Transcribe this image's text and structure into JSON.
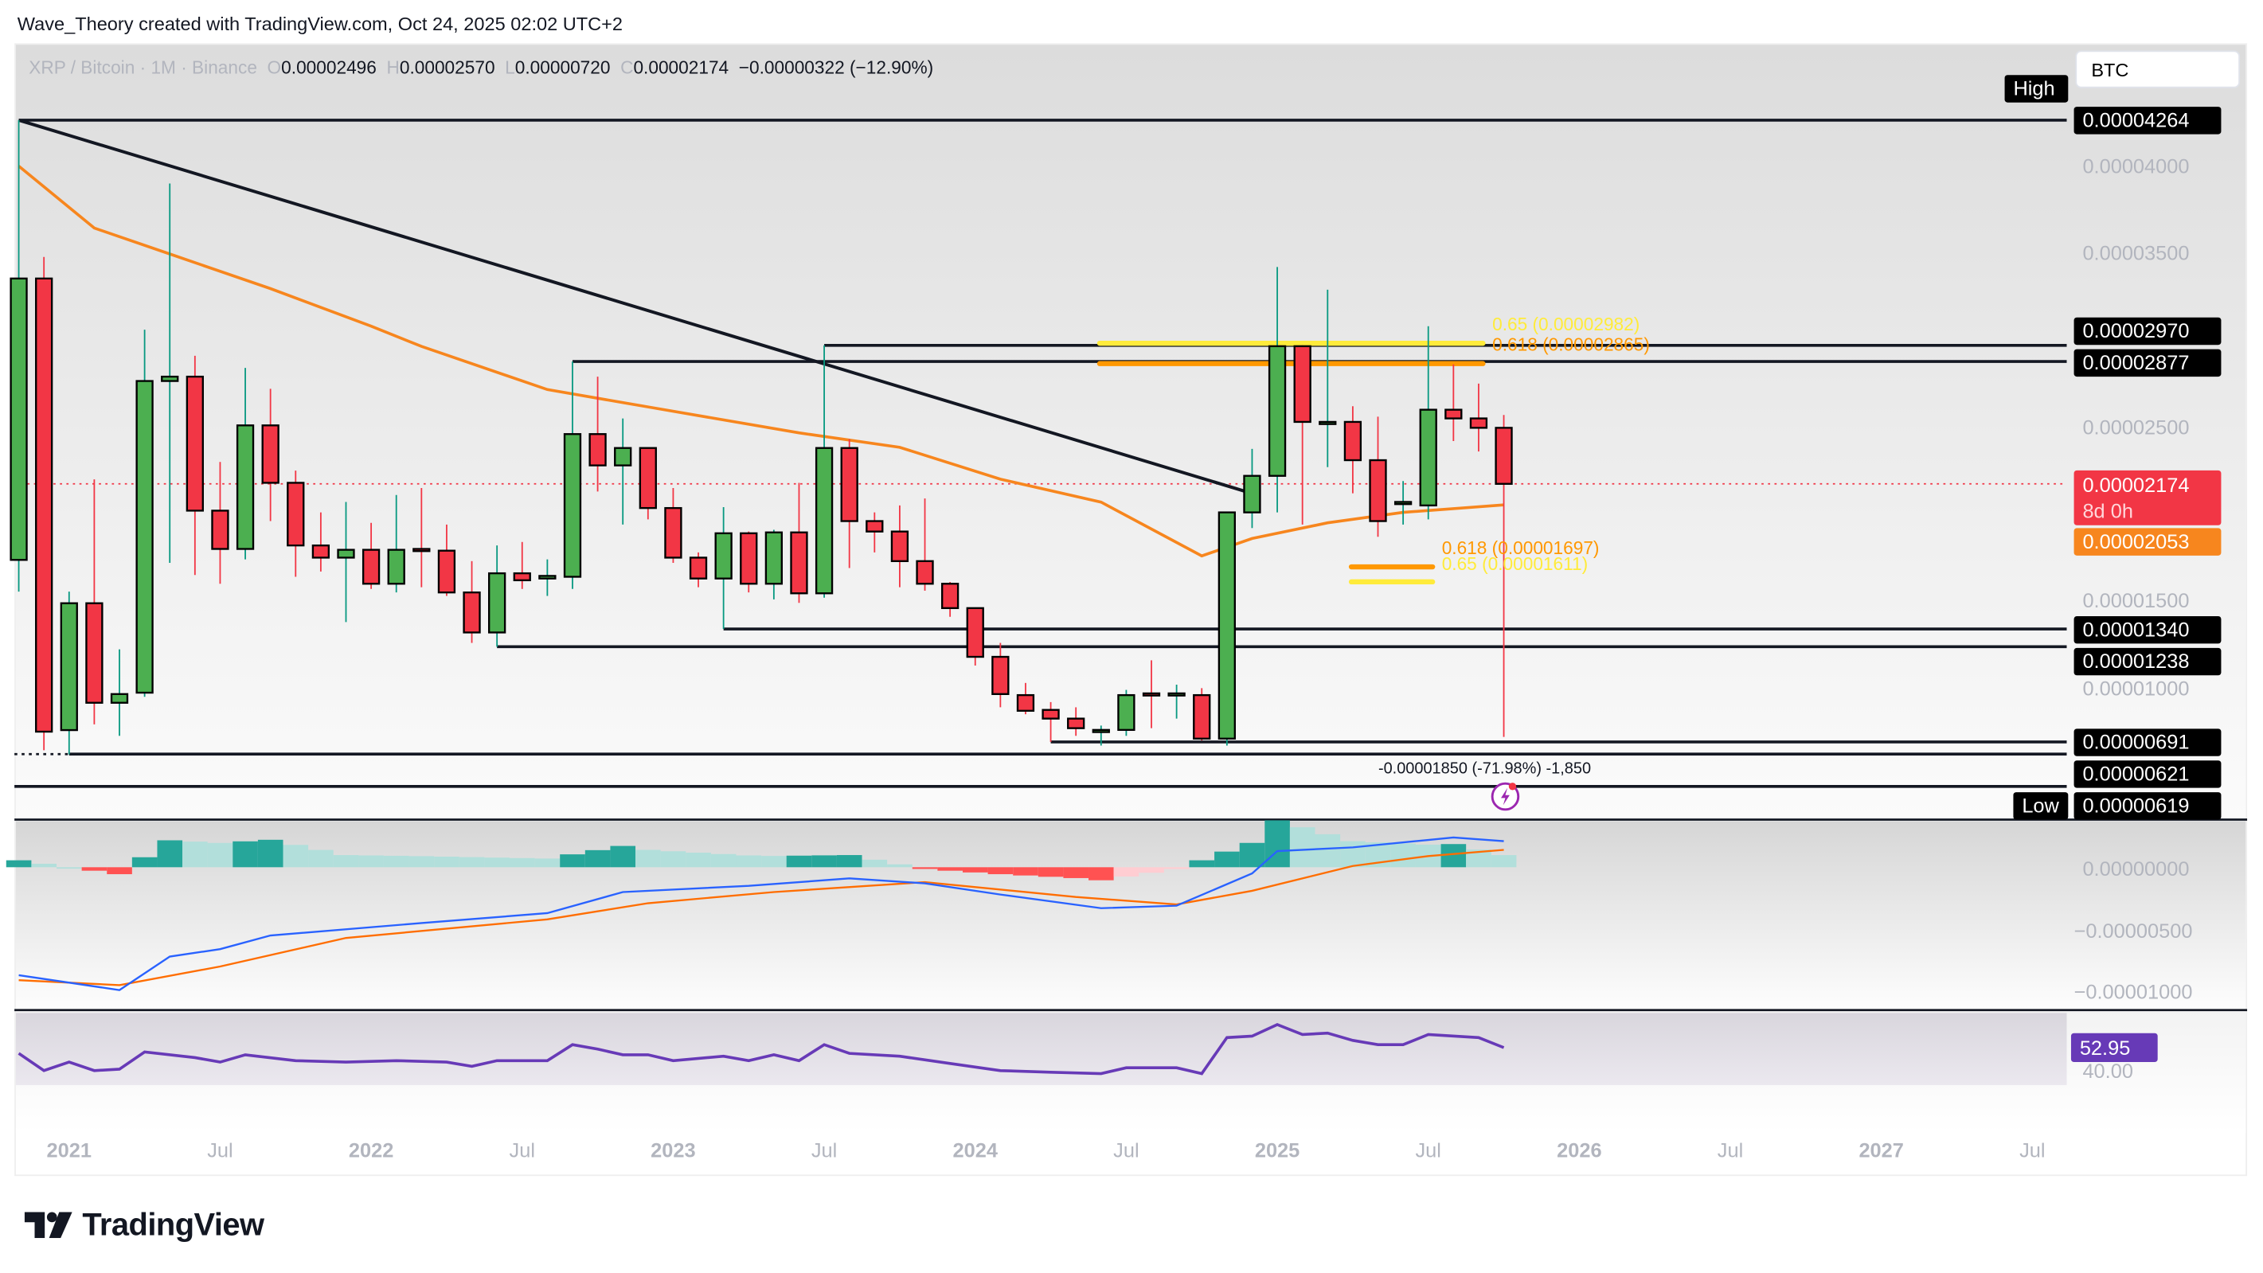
{
  "attribution": "Wave_Theory created with TradingView.com, Oct 24, 2025 02:02 UTC+2",
  "legend": {
    "symbol": "XRP / Bitcoin · 1M · Binance",
    "o_label": "O",
    "open": "0.00002496",
    "h_label": "H",
    "high": "0.00002570",
    "l_label": "L",
    "low": "0.00000720",
    "c_label": "C",
    "close": "0.00002174",
    "change": "−0.00000322 (−12.90%)"
  },
  "currency_box": "BTC",
  "price_axis": {
    "ticks": [
      "0.00004000",
      "0.00003500",
      "0.00002500",
      "0.00001500",
      "0.00001000"
    ],
    "high_tag": "High",
    "high_value": "0.00004264",
    "low_tag": "Low",
    "low_value": "0.00000619",
    "level_labels": [
      "0.00002970",
      "0.00002877",
      "0.00001340",
      "0.00001238",
      "0.00000691",
      "0.00000621"
    ],
    "last_price": "0.00002174",
    "countdown": "8d 0h",
    "ema_value": "0.00002053"
  },
  "fib_labels": {
    "upper_65": "0.65 (0.00002982)",
    "upper_618": "0.618 (0.00002865)",
    "lower_618": "0.618 (0.00001697)",
    "lower_65": "0.65 (0.00001611)"
  },
  "measure_label": "-0.00001850 (-71.98%) -1,850",
  "macd_axis": [
    "0.00000000",
    "−0.00000500",
    "−0.00001000"
  ],
  "rsi_axis": {
    "value": "52.95",
    "tick": "40.00"
  },
  "time_axis": [
    {
      "label": "2021",
      "date": "2021-01",
      "year": true
    },
    {
      "label": "Jul",
      "date": "2021-07"
    },
    {
      "label": "2022",
      "date": "2022-01",
      "year": true
    },
    {
      "label": "Jul",
      "date": "2022-07"
    },
    {
      "label": "2023",
      "date": "2023-01",
      "year": true
    },
    {
      "label": "Jul",
      "date": "2023-07"
    },
    {
      "label": "2024",
      "date": "2024-01",
      "year": true
    },
    {
      "label": "Jul",
      "date": "2024-07"
    },
    {
      "label": "2025",
      "date": "2025-01",
      "year": true
    },
    {
      "label": "Jul",
      "date": "2025-07"
    },
    {
      "label": "2026",
      "date": "2026-01",
      "year": true
    },
    {
      "label": "Jul",
      "date": "2026-07"
    },
    {
      "label": "2027",
      "date": "2027-01",
      "year": true
    },
    {
      "label": "Jul",
      "date": "2027-07"
    }
  ],
  "brand": "TradingView",
  "colors": {
    "up": "#4caf50",
    "down": "#f23645",
    "up_wick": "#089981",
    "down_wick": "#f23645",
    "ema": "#f7861e",
    "macd": "#2962ff",
    "signal": "#ff6d00",
    "rsi": "#673ab7",
    "fib_618": "#ff9800",
    "fib_65": "#ffeb3b"
  },
  "chart_data": {
    "type": "candlestick",
    "interval": "1M",
    "y_scale": "linear",
    "candles_ohlc": [
      [
        "2020-11",
        1.737e-05,
        4.264e-05,
        1.555e-05,
        3.354e-05
      ],
      [
        "2020-12",
        3.354e-05,
        3.478e-05,
        6.43e-06,
        7.5e-06
      ],
      [
        "2021-01",
        7.59e-06,
        1.555e-05,
        6.19e-06,
        1.488e-05
      ],
      [
        "2021-02",
        1.488e-05,
        2.2e-05,
        7.92e-06,
        9.16e-06
      ],
      [
        "2021-03",
        9.16e-06,
        1.223e-05,
        7.26e-06,
        9.66e-06
      ],
      [
        "2021-04",
        9.74e-06,
        3.06e-05,
        9.5e-06,
        2.765e-05
      ],
      [
        "2021-05",
        2.765e-05,
        3.9e-05,
        1.72e-05,
        2.79e-05
      ],
      [
        "2021-06",
        2.79e-05,
        2.91e-05,
        1.65e-05,
        2.02e-05
      ],
      [
        "2021-07",
        2.02e-05,
        2.3e-05,
        1.6e-05,
        1.8e-05
      ],
      [
        "2021-08",
        1.8e-05,
        2.84e-05,
        1.74e-05,
        2.51e-05
      ],
      [
        "2021-09",
        2.51e-05,
        2.72e-05,
        1.96e-05,
        2.18e-05
      ],
      [
        "2021-10",
        2.18e-05,
        2.25e-05,
        1.64e-05,
        1.82e-05
      ],
      [
        "2021-11",
        1.82e-05,
        2.01e-05,
        1.67e-05,
        1.75e-05
      ],
      [
        "2021-12",
        1.75e-05,
        2.07e-05,
        1.38e-05,
        1.795e-05
      ],
      [
        "2022-01",
        1.795e-05,
        1.95e-05,
        1.57e-05,
        1.6e-05
      ],
      [
        "2022-02",
        1.6e-05,
        2.11e-05,
        1.55e-05,
        1.795e-05
      ],
      [
        "2022-03",
        1.8e-05,
        2.15e-05,
        1.58e-05,
        1.79e-05
      ],
      [
        "2022-04",
        1.79e-05,
        1.94e-05,
        1.53e-05,
        1.55e-05
      ],
      [
        "2022-05",
        1.55e-05,
        1.73e-05,
        1.26e-05,
        1.32e-05
      ],
      [
        "2022-06",
        1.32e-05,
        1.82e-05,
        1.238e-05,
        1.66e-05
      ],
      [
        "2022-07",
        1.66e-05,
        1.84e-05,
        1.57e-05,
        1.62e-05
      ],
      [
        "2022-08",
        1.63e-05,
        1.74e-05,
        1.53e-05,
        1.645e-05
      ],
      [
        "2022-09",
        1.64e-05,
        2.877e-05,
        1.57e-05,
        2.46e-05
      ],
      [
        "2022-10",
        2.46e-05,
        2.79e-05,
        2.13e-05,
        2.28e-05
      ],
      [
        "2022-11",
        2.28e-05,
        2.55e-05,
        1.94e-05,
        2.38e-05
      ],
      [
        "2022-12",
        2.38e-05,
        2.38e-05,
        1.97e-05,
        2.035e-05
      ],
      [
        "2023-01",
        2.035e-05,
        2.15e-05,
        1.72e-05,
        1.75e-05
      ],
      [
        "2023-02",
        1.75e-05,
        1.78e-05,
        1.58e-05,
        1.63e-05
      ],
      [
        "2023-03",
        1.63e-05,
        2.04e-05,
        1.34e-05,
        1.89e-05
      ],
      [
        "2023-04",
        1.89e-05,
        1.9e-05,
        1.55e-05,
        1.6e-05
      ],
      [
        "2023-05",
        1.6e-05,
        1.91e-05,
        1.51e-05,
        1.895e-05
      ],
      [
        "2023-06",
        1.895e-05,
        2.18e-05,
        1.49e-05,
        1.545e-05
      ],
      [
        "2023-07",
        1.545e-05,
        2.97e-05,
        1.52e-05,
        2.38e-05
      ],
      [
        "2023-08",
        2.38e-05,
        2.43e-05,
        1.69e-05,
        1.96e-05
      ],
      [
        "2023-09",
        1.96e-05,
        2.01e-05,
        1.78e-05,
        1.9e-05
      ],
      [
        "2023-10",
        1.9e-05,
        2.05e-05,
        1.58e-05,
        1.73e-05
      ],
      [
        "2023-11",
        1.73e-05,
        2.09e-05,
        1.56e-05,
        1.6e-05
      ],
      [
        "2023-12",
        1.6e-05,
        1.61e-05,
        1.41e-05,
        1.46e-05
      ],
      [
        "2024-01",
        1.46e-05,
        1.46e-05,
        1.13e-05,
        1.18e-05
      ],
      [
        "2024-02",
        1.18e-05,
        1.26e-05,
        8.9e-06,
        9.66e-06
      ],
      [
        "2024-03",
        9.6e-06,
        1.03e-05,
        8.5e-06,
        8.7e-06
      ],
      [
        "2024-04",
        8.75e-06,
        9.2e-06,
        6.91e-06,
        8.25e-06
      ],
      [
        "2024-05",
        8.25e-06,
        8.9e-06,
        7.26e-06,
        7.7e-06
      ],
      [
        "2024-06",
        7.6e-06,
        7.85e-06,
        6.7e-06,
        7.6e-06
      ],
      [
        "2024-07",
        7.6e-06,
        9.9e-06,
        7.26e-06,
        9.6e-06
      ],
      [
        "2024-08",
        9.7e-06,
        1.16e-05,
        7.7e-06,
        9.65e-06
      ],
      [
        "2024-09",
        9.65e-06,
        1.02e-05,
        8.25e-06,
        9.7e-06
      ],
      [
        "2024-10",
        9.6e-06,
        1e-05,
        7e-06,
        7.1e-06
      ],
      [
        "2024-11",
        7.1e-06,
        2.01e-05,
        6.7e-06,
        2.01e-05
      ],
      [
        "2024-12",
        2.01e-05,
        2.375e-05,
        1.92e-05,
        2.22e-05
      ],
      [
        "2025-01",
        2.22e-05,
        3.42e-05,
        2.01e-05,
        2.965e-05
      ],
      [
        "2025-02",
        2.965e-05,
        2.97e-05,
        1.94e-05,
        2.53e-05
      ],
      [
        "2025-03",
        2.53e-05,
        3.29e-05,
        2.27e-05,
        2.53e-05
      ],
      [
        "2025-04",
        2.53e-05,
        2.62e-05,
        2.12e-05,
        2.31e-05
      ],
      [
        "2025-05",
        2.31e-05,
        2.56e-05,
        1.87e-05,
        1.96e-05
      ],
      [
        "2025-06",
        2.07e-05,
        2.19e-05,
        1.94e-05,
        2.07e-05
      ],
      [
        "2025-07",
        2.05e-05,
        3.08e-05,
        1.97e-05,
        2.6e-05
      ],
      [
        "2025-08",
        2.6e-05,
        2.86e-05,
        2.42e-05,
        2.55e-05
      ],
      [
        "2025-09",
        2.55e-05,
        2.75e-05,
        2.36e-05,
        2.496e-05
      ],
      [
        "2025-10",
        2.496e-05,
        2.57e-05,
        7.2e-06,
        2.174e-05
      ]
    ],
    "ema": [
      [
        "2020-11",
        4e-05
      ],
      [
        "2021-02",
        3.644e-05
      ],
      [
        "2021-05",
        3.495e-05
      ],
      [
        "2021-09",
        3.296e-05
      ],
      [
        "2022-01",
        3.08e-05
      ],
      [
        "2022-03",
        2.964e-05
      ],
      [
        "2022-08",
        2.716e-05
      ],
      [
        "2022-12",
        2.616e-05
      ],
      [
        "2023-06",
        2.467e-05
      ],
      [
        "2023-10",
        2.384e-05
      ],
      [
        "2024-02",
        2.201e-05
      ],
      [
        "2024-06",
        2.069e-05
      ],
      [
        "2024-10",
        1.76e-05
      ],
      [
        "2024-12",
        1.86e-05
      ],
      [
        "2025-03",
        1.95e-05
      ],
      [
        "2025-06",
        2.01e-05
      ],
      [
        "2025-10",
        2.053e-05
      ]
    ],
    "horizontal_levels": [
      {
        "price": 4.264e-05,
        "from": "2020-11"
      },
      {
        "price": 2.97e-05,
        "from": "2023-07"
      },
      {
        "price": 2.877e-05,
        "from": "2022-09"
      },
      {
        "price": 1.34e-05,
        "from": "2023-03"
      },
      {
        "price": 1.238e-05,
        "from": "2022-06"
      },
      {
        "price": 6.91e-06,
        "from": "2024-04"
      },
      {
        "price": 6.21e-06,
        "from": "2021-01"
      }
    ],
    "trendline": [
      [
        "2020-11",
        4.264e-05
      ],
      [
        "2024-12",
        2.119e-05
      ]
    ],
    "fib_levels": [
      {
        "ratio": 0.65,
        "price": 2.982e-05,
        "from": "2024-06",
        "to": "2025-09",
        "color": "#ffeb3b"
      },
      {
        "ratio": 0.618,
        "price": 2.865e-05,
        "from": "2024-06",
        "to": "2025-09",
        "color": "#ff9800"
      },
      {
        "ratio": 0.618,
        "price": 1.697e-05,
        "from": "2025-04",
        "to": "2025-07",
        "color": "#ff9800"
      },
      {
        "ratio": 0.65,
        "price": 1.611e-05,
        "from": "2025-04",
        "to": "2025-07",
        "color": "#ffeb3b"
      }
    ],
    "last_price": 2.174e-05,
    "macd": {
      "macd": [
        [
          "2020-11",
          -8.7e-06
        ],
        [
          "2021-03",
          -9.9e-06
        ],
        [
          "2021-05",
          -7.2e-06
        ],
        [
          "2021-07",
          -6.6e-06
        ],
        [
          "2021-09",
          -5.5e-06
        ],
        [
          "2022-03",
          -4.5e-06
        ],
        [
          "2022-08",
          -3.7e-06
        ],
        [
          "2022-11",
          -2e-06
        ],
        [
          "2023-04",
          -1.5e-06
        ],
        [
          "2023-08",
          -9e-07
        ],
        [
          "2023-11",
          -1.3e-06
        ],
        [
          "2024-02",
          -2.2e-06
        ],
        [
          "2024-06",
          -3.3e-06
        ],
        [
          "2024-09",
          -3.1e-06
        ],
        [
          "2024-12",
          -5e-07
        ],
        [
          "2025-01",
          1.3e-06
        ],
        [
          "2025-04",
          1.6e-06
        ],
        [
          "2025-07",
          2.2e-06
        ],
        [
          "2025-08",
          2.4e-06
        ],
        [
          "2025-10",
          2.1e-06
        ]
      ],
      "signal": [
        [
          "2020-11",
          -9.1e-06
        ],
        [
          "2021-03",
          -9.5e-06
        ],
        [
          "2021-07",
          -8e-06
        ],
        [
          "2021-12",
          -5.7e-06
        ],
        [
          "2022-08",
          -4.2e-06
        ],
        [
          "2022-12",
          -2.9e-06
        ],
        [
          "2023-05",
          -2e-06
        ],
        [
          "2023-11",
          -1.2e-06
        ],
        [
          "2024-05",
          -2.4e-06
        ],
        [
          "2024-09",
          -3e-06
        ],
        [
          "2024-12",
          -1.9e-06
        ],
        [
          "2025-04",
          1e-07
        ],
        [
          "2025-07",
          9e-07
        ],
        [
          "2025-10",
          1.4e-06
        ]
      ],
      "ylim": [
        -1.15e-05,
        3.5e-06
      ]
    },
    "rsi": [
      [
        "2020-11",
        49.7
      ],
      [
        "2020-12",
        40.0
      ],
      [
        "2021-01",
        44.8
      ],
      [
        "2021-02",
        40.0
      ],
      [
        "2021-03",
        40.8
      ],
      [
        "2021-04",
        50.5
      ],
      [
        "2021-06",
        47.3
      ],
      [
        "2021-07",
        44.8
      ],
      [
        "2021-08",
        48.9
      ],
      [
        "2021-10",
        45.6
      ],
      [
        "2021-12",
        44.8
      ],
      [
        "2022-02",
        45.6
      ],
      [
        "2022-04",
        44.8
      ],
      [
        "2022-05",
        42.4
      ],
      [
        "2022-06",
        45.6
      ],
      [
        "2022-08",
        45.6
      ],
      [
        "2022-09",
        54.6
      ],
      [
        "2022-10",
        52.1
      ],
      [
        "2022-11",
        48.9
      ],
      [
        "2022-12",
        48.9
      ],
      [
        "2023-01",
        45.6
      ],
      [
        "2023-03",
        48.1
      ],
      [
        "2023-04",
        45.6
      ],
      [
        "2023-05",
        48.9
      ],
      [
        "2023-06",
        45.6
      ],
      [
        "2023-07",
        54.6
      ],
      [
        "2023-08",
        49.7
      ],
      [
        "2023-10",
        48.1
      ],
      [
        "2023-12",
        44.0
      ],
      [
        "2024-02",
        40.0
      ],
      [
        "2024-04",
        39.1
      ],
      [
        "2024-06",
        38.3
      ],
      [
        "2024-07",
        41.6
      ],
      [
        "2024-09",
        41.6
      ],
      [
        "2024-10",
        38.3
      ],
      [
        "2024-11",
        58.6
      ],
      [
        "2024-12",
        59.4
      ],
      [
        "2025-01",
        65.9
      ],
      [
        "2025-02",
        60.3
      ],
      [
        "2025-03",
        61.1
      ],
      [
        "2025-04",
        57.0
      ],
      [
        "2025-05",
        54.6
      ],
      [
        "2025-06",
        54.6
      ],
      [
        "2025-07",
        60.3
      ],
      [
        "2025-09",
        58.6
      ],
      [
        "2025-10",
        52.95
      ]
    ]
  }
}
